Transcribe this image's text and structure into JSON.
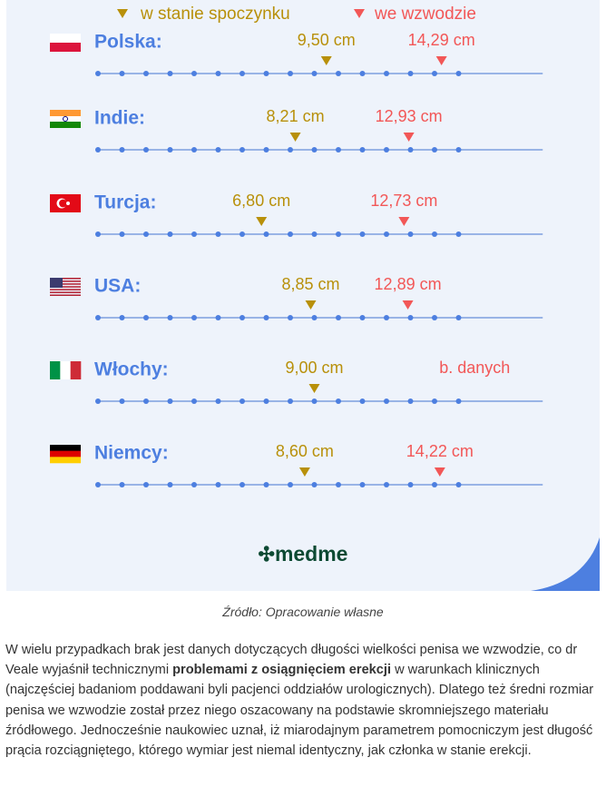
{
  "chart_data": {
    "type": "dot-scale",
    "categories": [
      "Polska:",
      "Indie:",
      "Turcja:",
      "USA:",
      "Włochy:",
      "Niemcy:"
    ],
    "series": [
      {
        "name": "w stanie spoczynku",
        "color": "#b8900a",
        "values": [
          9.5,
          8.21,
          6.8,
          8.85,
          9.0,
          8.6
        ],
        "value_labels": [
          "9,50 cm",
          "8,21 cm",
          "6,80 cm",
          "8,85 cm",
          "9,00 cm",
          "8,60 cm"
        ]
      },
      {
        "name": "we wzwodzie",
        "color": "#f25757",
        "values": [
          14.29,
          12.93,
          12.73,
          12.89,
          null,
          14.22
        ],
        "value_labels": [
          "14,29 cm",
          "12,93 cm",
          "12,73 cm",
          "12,89 cm",
          "b. danych",
          "14,22 cm"
        ]
      }
    ],
    "xlim": [
      0,
      18.5
    ],
    "xticks": [
      0,
      1,
      2,
      3,
      4,
      5,
      6,
      7,
      8,
      9,
      10,
      11,
      12,
      13,
      14,
      15
    ]
  },
  "logo": "medme",
  "caption": "Źródło: Opracowanie własne",
  "paragraph": [
    "W wielu przypadkach brak jest danych dotyczących długości wielkości penisa we wzwodzie, co dr Veale wyjaśnił technicznymi ",
    "problemami z osiągnięciem erekcji",
    " w warunkach klinicznych (najczęściej badaniom poddawani byli pacjenci oddziałów urologicznych). Dlatego też średni rozmiar penisa we wzwodzie został przez niego oszacowany na podstawie skromniejszego materiału źródłowego. Jednocześnie naukowiec uznał, iż miarodajnym parametrem pomocniczym jest długość prącia rozciągniętego, którego wymiar jest niemal identyczny, jak członka w stanie erekcji."
  ]
}
